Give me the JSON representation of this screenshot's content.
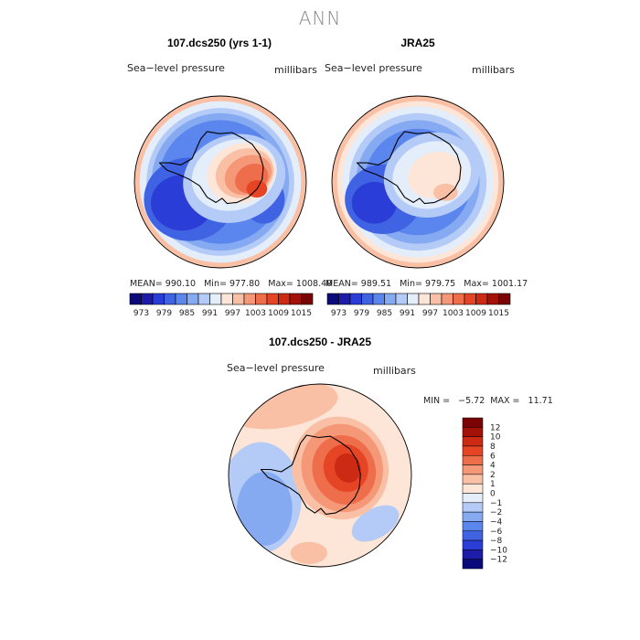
{
  "page_title": "ANN",
  "panels": [
    {
      "title": "107.dcs250 (yrs 1-1)",
      "left_label": "Sea−level pressure",
      "right_label": "millibars",
      "stats": {
        "mean_label": "MEAN=",
        "mean": "990.10",
        "min_label": "Min=",
        "min": "977.80",
        "max_label": "Max=",
        "max": "1008.40"
      }
    },
    {
      "title": "JRA25",
      "left_label": "Sea−level pressure",
      "right_label": "millibars",
      "stats": {
        "mean_label": "MEAN=",
        "mean": "989.51",
        "min_label": "Min=",
        "min": "979.75",
        "max_label": "Max=",
        "max": "1001.17"
      }
    },
    {
      "title": "107.dcs250 - JRA25",
      "left_label": "Sea−level pressure",
      "right_label": "millibars",
      "stats_line": "MIN =   −5.72  MAX =   11.71"
    }
  ],
  "chart_data": [
    {
      "type": "heatmap",
      "projection": "south-polar-stereographic",
      "title": "107.dcs250 (yrs 1-1)",
      "variable": "Sea-level pressure",
      "units": "millibars",
      "mean": 990.1,
      "min": 977.8,
      "max": 1008.4,
      "colorbar": {
        "orientation": "horizontal",
        "levels": [
          973,
          976,
          979,
          982,
          985,
          988,
          991,
          994,
          997,
          1000,
          1003,
          1006,
          1009,
          1012,
          1015
        ],
        "tick_labels": [
          "973",
          "979",
          "985",
          "991",
          "997",
          "1003",
          "1009",
          "1015"
        ],
        "colors": [
          "#0a0a7a",
          "#1c1ca8",
          "#2a3dd6",
          "#3f63e2",
          "#5b86ee",
          "#86aaf2",
          "#b3cbf6",
          "#e4eefb",
          "#fde5d8",
          "#f9c0a6",
          "#f59878",
          "#ee6e4c",
          "#e54525",
          "#cc2a12",
          "#a41108",
          "#7a0404"
        ]
      }
    },
    {
      "type": "heatmap",
      "projection": "south-polar-stereographic",
      "title": "JRA25",
      "variable": "Sea-level pressure",
      "units": "millibars",
      "mean": 989.51,
      "min": 979.75,
      "max": 1001.17,
      "colorbar": {
        "orientation": "horizontal",
        "levels": [
          973,
          976,
          979,
          982,
          985,
          988,
          991,
          994,
          997,
          1000,
          1003,
          1006,
          1009,
          1012,
          1015
        ],
        "tick_labels": [
          "973",
          "979",
          "985",
          "991",
          "997",
          "1003",
          "1009",
          "1015"
        ],
        "colors": [
          "#0a0a7a",
          "#1c1ca8",
          "#2a3dd6",
          "#3f63e2",
          "#5b86ee",
          "#86aaf2",
          "#b3cbf6",
          "#e4eefb",
          "#fde5d8",
          "#f9c0a6",
          "#f59878",
          "#ee6e4c",
          "#e54525",
          "#cc2a12",
          "#a41108",
          "#7a0404"
        ]
      }
    },
    {
      "type": "heatmap",
      "projection": "south-polar-stereographic",
      "title": "107.dcs250 - JRA25",
      "variable": "Sea-level pressure",
      "units": "millibars",
      "min": -5.72,
      "max": 11.71,
      "colorbar": {
        "orientation": "vertical",
        "levels": [
          -12,
          -10,
          -8,
          -6,
          -4,
          -2,
          -1,
          0,
          1,
          2,
          4,
          6,
          8,
          10,
          12
        ],
        "tick_labels": [
          "12",
          "10",
          "8",
          "6",
          "4",
          "2",
          "1",
          "0",
          "−1",
          "−2",
          "−4",
          "−6",
          "−8",
          "−10",
          "−12"
        ],
        "colors": [
          "#0a0a7a",
          "#1c1ca8",
          "#2a3dd6",
          "#3f63e2",
          "#5b86ee",
          "#86aaf2",
          "#b3cbf6",
          "#e4eefb",
          "#fde5d8",
          "#f9c0a6",
          "#f59878",
          "#ee6e4c",
          "#e54525",
          "#cc2a12",
          "#a41108",
          "#7a0404"
        ]
      }
    }
  ]
}
